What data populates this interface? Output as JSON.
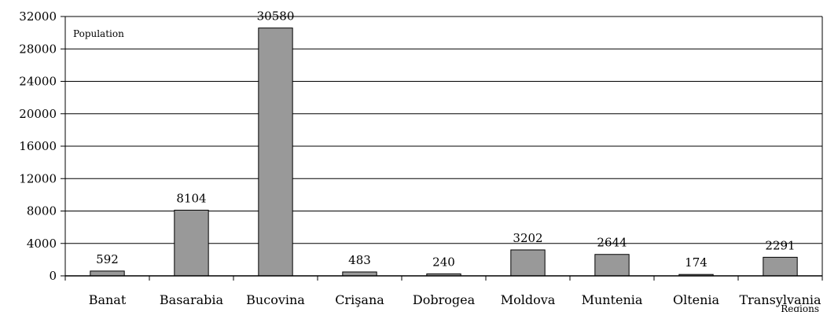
{
  "chart_data": {
    "type": "bar",
    "ylabel": "Population",
    "xlabel": "Regions",
    "categories": [
      "Banat",
      "Basarabia",
      "Bucovina",
      "Crişana",
      "Dobrogea",
      "Moldova",
      "Muntenia",
      "Oltenia",
      "Transylvania"
    ],
    "values": [
      592,
      8104,
      30580,
      483,
      240,
      3202,
      2644,
      174,
      2291
    ],
    "data_labels": [
      "592",
      "8104",
      "30580",
      "483",
      "240",
      "3202",
      "2644",
      "174",
      "2291"
    ],
    "yticks": [
      "0",
      "4000",
      "8000",
      "12000",
      "16000",
      "20000",
      "24000",
      "28000",
      "32000"
    ],
    "ylim": [
      0,
      32000
    ],
    "grid": true,
    "bar_color": "#999999",
    "bar_edge_color": "#000000",
    "legend": "none"
  }
}
